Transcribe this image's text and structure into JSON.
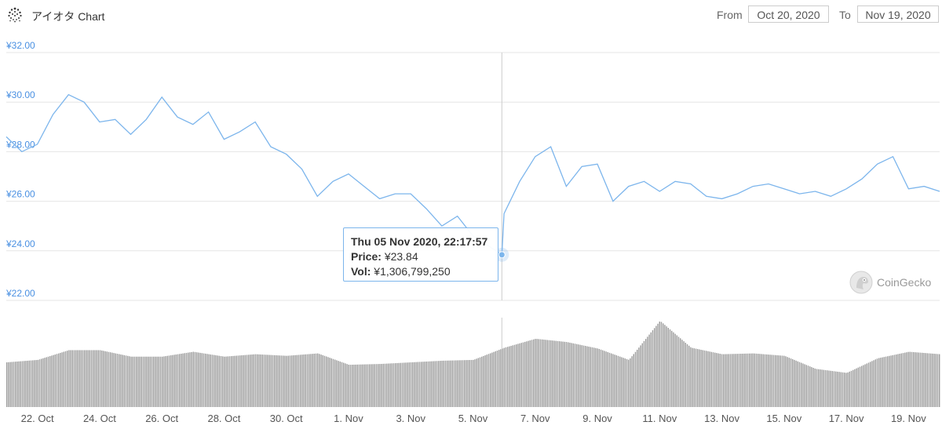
{
  "header": {
    "title": "アイオタ Chart",
    "from_label": "From",
    "from_value": "Oct 20, 2020",
    "to_label": "To",
    "to_value": "Nov 19, 2020"
  },
  "tooltip": {
    "date": "Thu 05 Nov 2020, 22:17:57",
    "price_label": "Price:",
    "price_value": "¥23.84",
    "vol_label": "Vol:",
    "vol_value": "¥1,306,799,250"
  },
  "credit": "CoinGecko",
  "colors": {
    "line": "#7cb5ec",
    "volume": "#9a9a9a",
    "grid": "#e6e6e6",
    "axis_label": "#4a90e2"
  },
  "chart_data": {
    "type": "line",
    "x_start": "2020-10-21",
    "x_end": "2020-11-20",
    "ylim": [
      22,
      32
    ],
    "y_ticks": [
      22,
      24,
      26,
      28,
      30,
      32
    ],
    "y_tick_labels": [
      "¥22.00",
      "¥24.00",
      "¥26.00",
      "¥28.00",
      "¥30.00",
      "¥32.00"
    ],
    "x_tick_labels": [
      "22. Oct",
      "24. Oct",
      "26. Oct",
      "28. Oct",
      "30. Oct",
      "1. Nov",
      "3. Nov",
      "5. Nov",
      "7. Nov",
      "9. Nov",
      "11. Nov",
      "13. Nov",
      "15. Nov",
      "17. Nov",
      "19. Nov"
    ],
    "x_tick_dates": [
      "2020-10-22",
      "2020-10-24",
      "2020-10-26",
      "2020-10-28",
      "2020-10-30",
      "2020-11-01",
      "2020-11-03",
      "2020-11-05",
      "2020-11-07",
      "2020-11-09",
      "2020-11-11",
      "2020-11-13",
      "2020-11-15",
      "2020-11-17",
      "2020-11-19"
    ],
    "price": {
      "x": [
        "2020-10-21",
        "2020-10-21T12:00",
        "2020-10-22",
        "2020-10-22T12:00",
        "2020-10-23",
        "2020-10-23T12:00",
        "2020-10-24",
        "2020-10-24T12:00",
        "2020-10-25",
        "2020-10-25T12:00",
        "2020-10-26",
        "2020-10-26T12:00",
        "2020-10-27",
        "2020-10-27T12:00",
        "2020-10-28",
        "2020-10-28T12:00",
        "2020-10-29",
        "2020-10-29T12:00",
        "2020-10-30",
        "2020-10-30T12:00",
        "2020-10-31",
        "2020-10-31T12:00",
        "2020-11-01",
        "2020-11-01T12:00",
        "2020-11-02",
        "2020-11-02T12:00",
        "2020-11-03",
        "2020-11-03T12:00",
        "2020-11-04",
        "2020-11-04T12:00",
        "2020-11-05",
        "2020-11-05T12:00",
        "2020-11-05T22:17:57",
        "2020-11-06",
        "2020-11-06T12:00",
        "2020-11-07",
        "2020-11-07T12:00",
        "2020-11-08",
        "2020-11-08T12:00",
        "2020-11-09",
        "2020-11-09T12:00",
        "2020-11-10",
        "2020-11-10T12:00",
        "2020-11-11",
        "2020-11-11T12:00",
        "2020-11-12",
        "2020-11-12T12:00",
        "2020-11-13",
        "2020-11-13T12:00",
        "2020-11-14",
        "2020-11-14T12:00",
        "2020-11-15",
        "2020-11-15T12:00",
        "2020-11-16",
        "2020-11-16T12:00",
        "2020-11-17",
        "2020-11-17T12:00",
        "2020-11-18",
        "2020-11-18T12:00",
        "2020-11-19",
        "2020-11-19T12:00",
        "2020-11-20"
      ],
      "y": [
        28.6,
        28.0,
        28.3,
        29.5,
        30.3,
        30.0,
        29.2,
        29.3,
        28.7,
        29.3,
        30.2,
        29.4,
        29.1,
        29.6,
        28.5,
        28.8,
        29.2,
        28.2,
        27.9,
        27.3,
        26.2,
        26.8,
        27.1,
        26.6,
        26.1,
        26.3,
        26.3,
        25.7,
        25.0,
        25.4,
        24.6,
        24.2,
        23.84,
        25.5,
        26.8,
        27.8,
        28.2,
        26.6,
        27.4,
        27.5,
        26.0,
        26.6,
        26.8,
        26.4,
        26.8,
        26.7,
        26.2,
        26.1,
        26.3,
        26.6,
        26.7,
        26.5,
        26.3,
        26.4,
        26.2,
        26.5,
        26.9,
        27.5,
        27.8,
        26.5,
        26.6,
        26.4
      ]
    },
    "volume": {
      "x": [
        "2020-10-21",
        "2020-10-22",
        "2020-10-23",
        "2020-10-24",
        "2020-10-25",
        "2020-10-26",
        "2020-10-27",
        "2020-10-28",
        "2020-10-29",
        "2020-10-30",
        "2020-10-31",
        "2020-11-01",
        "2020-11-02",
        "2020-11-03",
        "2020-11-04",
        "2020-11-05",
        "2020-11-06",
        "2020-11-07",
        "2020-11-08",
        "2020-11-09",
        "2020-11-10",
        "2020-11-11",
        "2020-11-12",
        "2020-11-13",
        "2020-11-14",
        "2020-11-15",
        "2020-11-16",
        "2020-11-17",
        "2020-11-18",
        "2020-11-19",
        "2020-11-20"
      ],
      "y": [
        0.55,
        0.58,
        0.7,
        0.7,
        0.62,
        0.62,
        0.68,
        0.62,
        0.65,
        0.63,
        0.66,
        0.52,
        0.53,
        0.55,
        0.57,
        0.58,
        0.73,
        0.84,
        0.8,
        0.72,
        0.58,
        1.06,
        0.73,
        0.65,
        0.66,
        0.63,
        0.47,
        0.42,
        0.6,
        0.68,
        0.65
      ]
    }
  }
}
